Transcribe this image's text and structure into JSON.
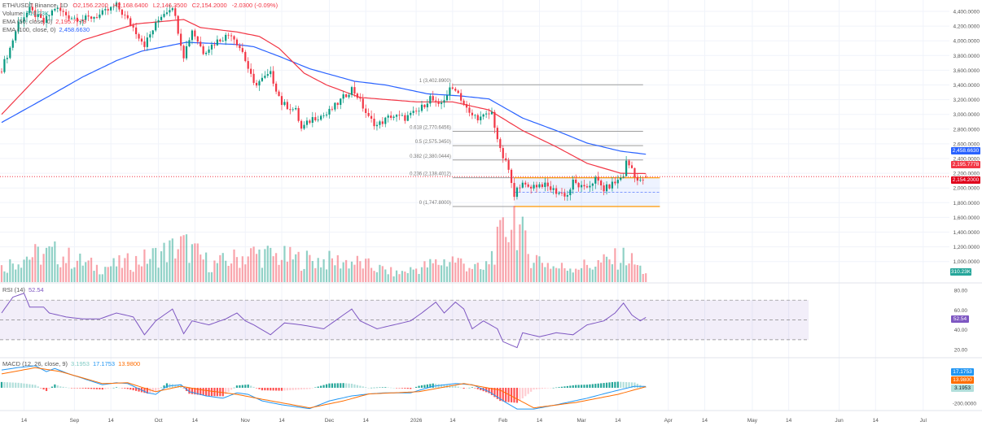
{
  "legend": {
    "symbol": "ETH/USDT Binance, 1D",
    "open": "O2,156.2200",
    "high": "H2,168.6400",
    "low": "L2,146.3500",
    "close": "C2,154.2000",
    "change": "-2.0300 (-0.09%)",
    "volume_label": "Volume",
    "volume_value": "310.23K",
    "ema50_label": "EMA (50, close, 0)",
    "ema50_value": "2,195.7778",
    "ema100_label": "EMA (100, close, 0)",
    "ema100_value": "2,458.6630",
    "rsi_label": "RSI (14)",
    "rsi_value": "52.54",
    "macd_label": "MACD (12, 26, close, 9)",
    "macd_hist": "3.1953",
    "macd_line": "17.1753",
    "macd_signal": "13.9800"
  },
  "colors": {
    "up": "#089981",
    "down": "#f23645",
    "ema50": "#f23645",
    "ema100": "#2962ff",
    "rsi": "#7e57c2",
    "macd": "#2196f3",
    "signal": "#ff6d00",
    "fib": "#9e9e9e",
    "range": "#ff9800"
  },
  "price_axis": [
    "4,400.0000",
    "4,200.0000",
    "4,000.0000",
    "3,800.0000",
    "3,600.0000",
    "3,400.0000",
    "3,200.0000",
    "3,000.0000",
    "2,800.0000",
    "2,600.0000",
    "2,400.0000",
    "2,200.0000",
    "2,000.0000",
    "1,800.0000",
    "1,600.0000",
    "1,400.0000",
    "1,200.0000",
    "1,000.0000"
  ],
  "price_badges": {
    "ema100": "2,458.6630",
    "ema50": "2,195.7778",
    "last": "2,154.2000",
    "volume": "310.23K"
  },
  "rsi_axis": [
    "80.00",
    "60.00",
    "40.00",
    "20.00"
  ],
  "rsi_badge": "52.54",
  "macd_axis": [
    "-200.0000"
  ],
  "macd_badges": {
    "macd": "17.1753",
    "signal": "13.9800",
    "hist": "3.1953"
  },
  "time_axis": [
    {
      "label": "14",
      "date": "2025-08-14"
    },
    {
      "label": "Sep",
      "date": "2025-09-01"
    },
    {
      "label": "14",
      "date": "2025-09-14"
    },
    {
      "label": "Oct",
      "date": "2025-10-01"
    },
    {
      "label": "14",
      "date": "2025-10-14"
    },
    {
      "label": "Nov",
      "date": "2025-11-01"
    },
    {
      "label": "14",
      "date": "2025-11-14"
    },
    {
      "label": "Dec",
      "date": "2025-12-01"
    },
    {
      "label": "14",
      "date": "2025-12-14"
    },
    {
      "label": "2026",
      "date": "2026-01-01"
    },
    {
      "label": "14",
      "date": "2026-01-14"
    },
    {
      "label": "Feb",
      "date": "2026-02-01"
    },
    {
      "label": "14",
      "date": "2026-02-14"
    },
    {
      "label": "Mar",
      "date": "2026-03-01"
    },
    {
      "label": "14",
      "date": "2026-03-14"
    },
    {
      "label": "Apr",
      "date": "2026-04-01"
    },
    {
      "label": "14",
      "date": "2026-04-14"
    },
    {
      "label": "May",
      "date": "2026-05-01"
    },
    {
      "label": "14",
      "date": "2026-05-14"
    },
    {
      "label": "Jun",
      "date": "2026-06-01"
    },
    {
      "label": "14",
      "date": "2026-06-14"
    },
    {
      "label": "Jul",
      "date": "2026-07-01"
    }
  ],
  "fib": {
    "start": "2026-01-14",
    "end": "2026-03-23",
    "levels": [
      {
        "label": "1 (3,402.8900)",
        "value": 3402.89
      },
      {
        "label": "0.618 (2,770.6456)",
        "value": 2770.6456
      },
      {
        "label": "0.5 (2,575.3450)",
        "value": 2575.345
      },
      {
        "label": "0.382 (2,380.0444)",
        "value": 2380.0444
      },
      {
        "label": "0.236 (2,138.4012)",
        "value": 2138.4012
      },
      {
        "label": "0 (1,747.8000)",
        "value": 1747.8
      }
    ]
  },
  "range_box": {
    "start": "2026-02-05",
    "end": "2026-03-29",
    "top": 2138.4,
    "bottom": 1747.8
  },
  "chart_data": {
    "type": "candlestick",
    "last_price": 2154.2,
    "price_range": [
      1000,
      4400
    ],
    "closes": [
      [
        "2025-08-06",
        3620
      ],
      [
        "2025-08-09",
        3900
      ],
      [
        "2025-08-12",
        4250
      ],
      [
        "2025-08-16",
        4420
      ],
      [
        "2025-08-21",
        4250
      ],
      [
        "2025-08-25",
        4450
      ],
      [
        "2025-08-30",
        4330
      ],
      [
        "2025-09-04",
        4290
      ],
      [
        "2025-09-10",
        4350
      ],
      [
        "2025-09-16",
        4480
      ],
      [
        "2025-09-22",
        4180
      ],
      [
        "2025-09-26",
        3950
      ],
      [
        "2025-10-02",
        4350
      ],
      [
        "2025-10-06",
        4480
      ],
      [
        "2025-10-10",
        3800
      ],
      [
        "2025-10-13",
        4150
      ],
      [
        "2025-10-17",
        3850
      ],
      [
        "2025-10-22",
        4000
      ],
      [
        "2025-10-27",
        4100
      ],
      [
        "2025-10-31",
        3850
      ],
      [
        "2025-11-04",
        3400
      ],
      [
        "2025-11-10",
        3550
      ],
      [
        "2025-11-14",
        3150
      ],
      [
        "2025-11-19",
        3050
      ],
      [
        "2025-11-21",
        2800
      ],
      [
        "2025-11-25",
        2950
      ],
      [
        "2025-11-30",
        3000
      ],
      [
        "2025-12-04",
        3150
      ],
      [
        "2025-12-09",
        3350
      ],
      [
        "2025-12-11",
        3250
      ],
      [
        "2025-12-15",
        2950
      ],
      [
        "2025-12-18",
        2850
      ],
      [
        "2025-12-23",
        2980
      ],
      [
        "2025-12-28",
        2950
      ],
      [
        "2026-01-02",
        3050
      ],
      [
        "2026-01-06",
        3230
      ],
      [
        "2026-01-09",
        3100
      ],
      [
        "2026-01-13",
        3330
      ],
      [
        "2026-01-15",
        3360
      ],
      [
        "2026-01-20",
        3000
      ],
      [
        "2026-01-24",
        2950
      ],
      [
        "2026-01-28",
        3020
      ],
      [
        "2026-01-31",
        2500
      ],
      [
        "2026-02-03",
        2250
      ],
      [
        "2026-02-05",
        1850
      ],
      [
        "2026-02-06",
        2050
      ],
      [
        "2026-02-10",
        2020
      ],
      [
        "2026-02-15",
        2050
      ],
      [
        "2026-02-20",
        1950
      ],
      [
        "2026-02-24",
        1900
      ],
      [
        "2026-02-26",
        2080
      ],
      [
        "2026-03-02",
        1980
      ],
      [
        "2026-03-06",
        2120
      ],
      [
        "2026-03-09",
        1980
      ],
      [
        "2026-03-14",
        2100
      ],
      [
        "2026-03-16",
        2180
      ],
      [
        "2026-03-17",
        2350
      ],
      [
        "2026-03-19",
        2270
      ],
      [
        "2026-03-21",
        2100
      ],
      [
        "2026-03-22",
        2080
      ],
      [
        "2026-03-24",
        2154.2
      ]
    ],
    "ema50": [
      [
        "2025-08-06",
        3000
      ],
      [
        "2025-08-23",
        3680
      ],
      [
        "2025-09-04",
        4010
      ],
      [
        "2025-09-23",
        4230
      ],
      [
        "2025-10-10",
        4290
      ],
      [
        "2025-10-16",
        4180
      ],
      [
        "2025-10-29",
        4120
      ],
      [
        "2025-11-06",
        4060
      ],
      [
        "2025-11-13",
        3900
      ],
      [
        "2025-11-22",
        3560
      ],
      [
        "2025-11-30",
        3400
      ],
      [
        "2025-12-12",
        3230
      ],
      [
        "2026-01-01",
        3170
      ],
      [
        "2026-01-14",
        3170
      ],
      [
        "2026-01-27",
        3060
      ],
      [
        "2026-02-08",
        2780
      ],
      [
        "2026-02-20",
        2560
      ],
      [
        "2026-03-03",
        2335
      ],
      [
        "2026-03-15",
        2200
      ],
      [
        "2026-03-24",
        2195.78
      ]
    ],
    "ema100": [
      [
        "2025-08-06",
        2890
      ],
      [
        "2025-08-23",
        3250
      ],
      [
        "2025-09-04",
        3510
      ],
      [
        "2025-09-16",
        3730
      ],
      [
        "2025-09-25",
        3860
      ],
      [
        "2025-10-11",
        3980
      ],
      [
        "2025-10-29",
        3950
      ],
      [
        "2025-11-04",
        3920
      ],
      [
        "2025-11-13",
        3790
      ],
      [
        "2025-11-24",
        3620
      ],
      [
        "2025-12-10",
        3450
      ],
      [
        "2025-12-21",
        3400
      ],
      [
        "2026-01-05",
        3280
      ],
      [
        "2026-01-17",
        3250
      ],
      [
        "2026-01-27",
        3210
      ],
      [
        "2026-02-08",
        2950
      ],
      [
        "2026-02-20",
        2780
      ],
      [
        "2026-03-03",
        2610
      ],
      [
        "2026-03-15",
        2500
      ],
      [
        "2026-03-24",
        2458.66
      ]
    ],
    "volume_k": [
      [
        "2025-08-06",
        500
      ],
      [
        "2025-08-14",
        900
      ],
      [
        "2025-08-25",
        1000
      ],
      [
        "2025-09-10",
        500
      ],
      [
        "2025-09-26",
        800
      ],
      [
        "2025-10-10",
        1300
      ],
      [
        "2025-10-20",
        600
      ],
      [
        "2025-11-04",
        1000
      ],
      [
        "2025-11-20",
        800
      ],
      [
        "2025-12-10",
        700
      ],
      [
        "2025-12-25",
        300
      ],
      [
        "2026-01-14",
        800
      ],
      [
        "2026-01-25",
        400
      ],
      [
        "2026-02-05",
        2400
      ],
      [
        "2026-02-10",
        1000
      ],
      [
        "2026-02-20",
        500
      ],
      [
        "2026-03-05",
        600
      ],
      [
        "2026-03-17",
        900
      ],
      [
        "2026-03-24",
        310.23
      ]
    ],
    "rsi": {
      "range": [
        20,
        80
      ],
      "bands": [
        30,
        50,
        70
      ],
      "points": [
        [
          "2025-08-06",
          57
        ],
        [
          "2025-08-10",
          73
        ],
        [
          "2025-08-14",
          77
        ],
        [
          "2025-08-16",
          63
        ],
        [
          "2025-08-21",
          63
        ],
        [
          "2025-08-23",
          57
        ],
        [
          "2025-08-29",
          53
        ],
        [
          "2025-09-04",
          51
        ],
        [
          "2025-09-10",
          51
        ],
        [
          "2025-09-16",
          57
        ],
        [
          "2025-09-22",
          53
        ],
        [
          "2025-09-26",
          35
        ],
        [
          "2025-09-30",
          49
        ],
        [
          "2025-10-06",
          61
        ],
        [
          "2025-10-10",
          36
        ],
        [
          "2025-10-13",
          49
        ],
        [
          "2025-10-19",
          45
        ],
        [
          "2025-10-25",
          51
        ],
        [
          "2025-10-29",
          57
        ],
        [
          "2025-11-01",
          49
        ],
        [
          "2025-11-04",
          45
        ],
        [
          "2025-11-10",
          35
        ],
        [
          "2025-11-15",
          47
        ],
        [
          "2025-11-21",
          45
        ],
        [
          "2025-11-29",
          41
        ],
        [
          "2025-12-03",
          49
        ],
        [
          "2025-12-09",
          61
        ],
        [
          "2025-12-12",
          49
        ],
        [
          "2025-12-18",
          41
        ],
        [
          "2025-12-24",
          45
        ],
        [
          "2025-12-30",
          49
        ],
        [
          "2026-01-03",
          57
        ],
        [
          "2026-01-08",
          68
        ],
        [
          "2026-01-11",
          57
        ],
        [
          "2026-01-15",
          68
        ],
        [
          "2026-01-18",
          61
        ],
        [
          "2026-01-21",
          41
        ],
        [
          "2026-01-25",
          49
        ],
        [
          "2026-01-30",
          41
        ],
        [
          "2026-02-01",
          28
        ],
        [
          "2026-02-06",
          22
        ],
        [
          "2026-02-08",
          37
        ],
        [
          "2026-02-14",
          33
        ],
        [
          "2026-02-20",
          37
        ],
        [
          "2026-02-26",
          35
        ],
        [
          "2026-03-03",
          45
        ],
        [
          "2026-03-09",
          49
        ],
        [
          "2026-03-13",
          57
        ],
        [
          "2026-03-16",
          67
        ],
        [
          "2026-03-19",
          55
        ],
        [
          "2026-03-22",
          49
        ],
        [
          "2026-03-24",
          52.54
        ]
      ]
    },
    "macd": {
      "line": [
        [
          "2025-08-06",
          230
        ],
        [
          "2025-08-12",
          263
        ],
        [
          "2025-08-18",
          285
        ],
        [
          "2025-08-22",
          210
        ],
        [
          "2025-08-25",
          250
        ],
        [
          "2025-08-30",
          180
        ],
        [
          "2025-09-11",
          40
        ],
        [
          "2025-09-16",
          65
        ],
        [
          "2025-09-20",
          55
        ],
        [
          "2025-09-27",
          -65
        ],
        [
          "2025-09-30",
          -85
        ],
        [
          "2025-10-04",
          20
        ],
        [
          "2025-10-09",
          40
        ],
        [
          "2025-10-12",
          -50
        ],
        [
          "2025-10-18",
          -105
        ],
        [
          "2025-10-24",
          -135
        ],
        [
          "2025-10-29",
          -65
        ],
        [
          "2025-11-02",
          -85
        ],
        [
          "2025-11-07",
          -170
        ],
        [
          "2025-11-14",
          -220
        ],
        [
          "2025-11-24",
          -270
        ],
        [
          "2025-12-01",
          -170
        ],
        [
          "2025-12-09",
          -105
        ],
        [
          "2025-12-15",
          -80
        ],
        [
          "2025-12-21",
          -65
        ],
        [
          "2025-12-30",
          -65
        ],
        [
          "2026-01-07",
          20
        ],
        [
          "2026-01-15",
          55
        ],
        [
          "2026-01-21",
          40
        ],
        [
          "2026-01-27",
          -50
        ],
        [
          "2026-02-02",
          -190
        ],
        [
          "2026-02-06",
          -275
        ],
        [
          "2026-02-12",
          -275
        ],
        [
          "2026-02-20",
          -220
        ],
        [
          "2026-03-03",
          -135
        ],
        [
          "2026-03-12",
          -50
        ],
        [
          "2026-03-20",
          20
        ],
        [
          "2026-03-24",
          17.1753
        ]
      ],
      "signal": [
        [
          "2025-08-06",
          180
        ],
        [
          "2025-08-18",
          260
        ],
        [
          "2025-08-27",
          210
        ],
        [
          "2025-09-11",
          55
        ],
        [
          "2025-09-20",
          65
        ],
        [
          "2025-09-30",
          -50
        ],
        [
          "2025-10-09",
          20
        ],
        [
          "2025-10-17",
          -30
        ],
        [
          "2025-10-29",
          -85
        ],
        [
          "2025-11-08",
          -155
        ],
        [
          "2025-11-24",
          -260
        ],
        [
          "2025-12-06",
          -170
        ],
        [
          "2025-12-15",
          -80
        ],
        [
          "2026-01-02",
          -50
        ],
        [
          "2026-01-18",
          55
        ],
        [
          "2026-01-31",
          -30
        ],
        [
          "2026-02-12",
          -260
        ],
        [
          "2026-02-27",
          -190
        ],
        [
          "2026-03-14",
          -85
        ],
        [
          "2026-03-24",
          13.98
        ]
      ]
    }
  }
}
